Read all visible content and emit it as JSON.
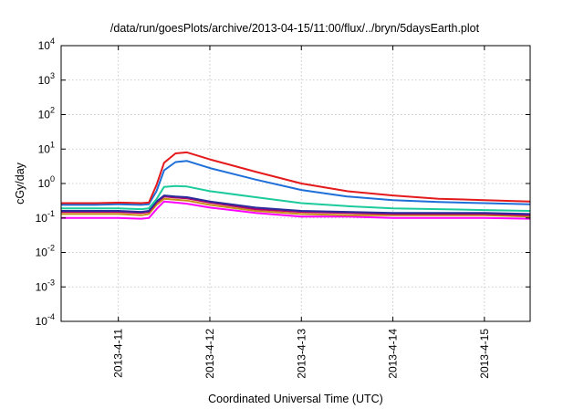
{
  "chart_data": {
    "type": "line",
    "title": "/data/run/goesPlots/archive/2013-04-15/11:00/flux/../bryn/5daysEarth.plot",
    "xlabel": "Coordinated Universal Time (UTC)",
    "ylabel": "cGy/day",
    "y_scale": "log",
    "ylim": [
      0.0001,
      10000
    ],
    "y_ticks": [
      {
        "base": "10",
        "exp": "-4",
        "value": 0.0001
      },
      {
        "base": "10",
        "exp": "-3",
        "value": 0.001
      },
      {
        "base": "10",
        "exp": "-2",
        "value": 0.01
      },
      {
        "base": "10",
        "exp": "-1",
        "value": 0.1
      },
      {
        "base": "10",
        "exp": "0",
        "value": 1
      },
      {
        "base": "10",
        "exp": "1",
        "value": 10
      },
      {
        "base": "10",
        "exp": "2",
        "value": 100
      },
      {
        "base": "10",
        "exp": "3",
        "value": 1000
      },
      {
        "base": "10",
        "exp": "4",
        "value": 10000
      }
    ],
    "xlim": [
      "2013-04-10 09:00",
      "2013-04-15 12:00"
    ],
    "x_ticks": [
      "2013-4-11",
      "2013-4-12",
      "2013-4-13",
      "2013-4-14",
      "2013-4-15"
    ],
    "grid": true,
    "x": [
      "2013-04-10 09:00",
      "2013-04-10 18:00",
      "2013-04-11 00:00",
      "2013-04-11 06:00",
      "2013-04-11 08:00",
      "2013-04-11 10:00",
      "2013-04-11 12:00",
      "2013-04-11 15:00",
      "2013-04-11 18:00",
      "2013-04-12 00:00",
      "2013-04-12 12:00",
      "2013-04-13 00:00",
      "2013-04-13 12:00",
      "2013-04-14 00:00",
      "2013-04-14 12:00",
      "2013-04-15 00:00",
      "2013-04-15 12:00"
    ],
    "series": [
      {
        "color": "#e41a1c",
        "values": [
          0.27,
          0.27,
          0.28,
          0.27,
          0.28,
          0.9,
          4.0,
          7.5,
          8.0,
          5.0,
          2.2,
          1.0,
          0.6,
          0.45,
          0.36,
          0.33,
          0.3
        ]
      },
      {
        "color": "#1f6fd8",
        "values": [
          0.24,
          0.24,
          0.25,
          0.24,
          0.25,
          0.6,
          2.4,
          4.2,
          4.5,
          2.8,
          1.3,
          0.65,
          0.42,
          0.33,
          0.29,
          0.27,
          0.25
        ]
      },
      {
        "color": "#1ccb9c",
        "values": [
          0.19,
          0.19,
          0.19,
          0.18,
          0.19,
          0.35,
          0.8,
          0.85,
          0.82,
          0.6,
          0.4,
          0.27,
          0.22,
          0.19,
          0.18,
          0.17,
          0.16
        ]
      },
      {
        "color": "#2b2b9b",
        "values": [
          0.16,
          0.16,
          0.16,
          0.15,
          0.16,
          0.3,
          0.45,
          0.42,
          0.4,
          0.3,
          0.2,
          0.16,
          0.15,
          0.14,
          0.14,
          0.14,
          0.13
        ]
      },
      {
        "color": "#b3006b",
        "values": [
          0.15,
          0.15,
          0.15,
          0.14,
          0.15,
          0.28,
          0.42,
          0.39,
          0.37,
          0.28,
          0.18,
          0.15,
          0.14,
          0.13,
          0.13,
          0.13,
          0.12
        ]
      },
      {
        "color": "#c88f18",
        "values": [
          0.13,
          0.13,
          0.13,
          0.12,
          0.13,
          0.24,
          0.36,
          0.34,
          0.32,
          0.24,
          0.16,
          0.13,
          0.12,
          0.12,
          0.12,
          0.12,
          0.11
        ]
      },
      {
        "color": "#ff00ff",
        "values": [
          0.1,
          0.1,
          0.1,
          0.095,
          0.1,
          0.18,
          0.3,
          0.28,
          0.26,
          0.2,
          0.14,
          0.11,
          0.11,
          0.1,
          0.1,
          0.1,
          0.095
        ]
      }
    ]
  }
}
